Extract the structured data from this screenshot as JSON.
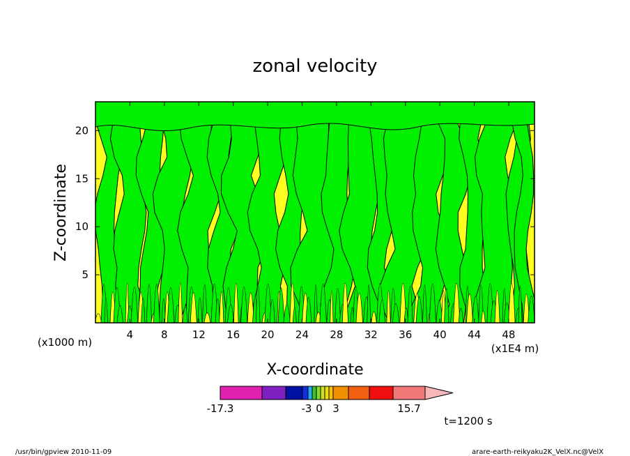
{
  "chart_data": {
    "type": "heatmap",
    "title": "zonal velocity",
    "xlabel": "X-coordinate",
    "ylabel": "Z-coordinate",
    "x_unit": "(x1E4 m)",
    "y_unit": "(x1000 m)",
    "x_ticks": [
      4,
      8,
      12,
      16,
      20,
      24,
      28,
      32,
      36,
      40,
      44,
      48
    ],
    "y_ticks": [
      5,
      10,
      15,
      20
    ],
    "xlim": [
      0,
      51
    ],
    "ylim": [
      0,
      23
    ],
    "time_label": "t=1200 s",
    "colorbar": {
      "tick_labels": [
        "-17.3",
        "-3",
        "0",
        "3",
        "15.7"
      ],
      "bins": [
        {
          "color": "#e020b0"
        },
        {
          "color": "#8020c0"
        },
        {
          "color": "#0010a0"
        },
        {
          "color": "#1030e0"
        },
        {
          "color": "#20b0f0"
        },
        {
          "color": "#40c030"
        },
        {
          "color": "#80e020"
        },
        {
          "color": "#d0e020"
        },
        {
          "color": "#f0e000"
        },
        {
          "color": "#f8c000"
        },
        {
          "color": "#f09000"
        },
        {
          "color": "#f06010"
        },
        {
          "color": "#f01010"
        },
        {
          "color": "#f07878"
        },
        {
          "color": "#f8b8b8"
        }
      ]
    },
    "field_colors": {
      "negative": "#00f000",
      "positive": "#ffff20"
    }
  },
  "footer": {
    "left": "/usr/bin/gpview   2010-11-09",
    "right": "arare-earth-reikyaku2K_VelX.nc@VelX"
  }
}
